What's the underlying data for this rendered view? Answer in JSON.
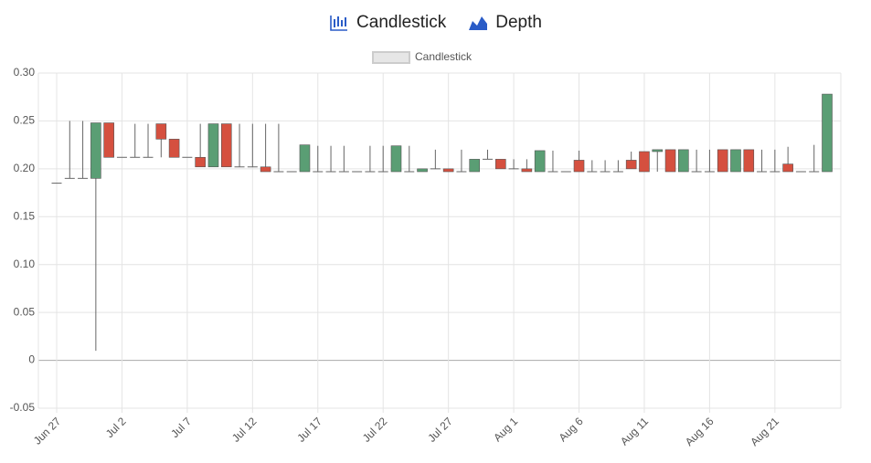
{
  "tabs": [
    "Candlestick",
    "Depth"
  ],
  "chart_data": {
    "type": "candlestick",
    "legend": "Candlestick",
    "up_color": "#5a9e74",
    "down_color": "#d5503f",
    "wick_color": "#666666",
    "grid": true,
    "categories": [
      "Jun 27",
      null,
      null,
      null,
      null,
      "Jul 2",
      null,
      null,
      null,
      null,
      "Jul 7",
      null,
      null,
      null,
      null,
      "Jul 12",
      null,
      null,
      null,
      null,
      "Jul 17",
      null,
      null,
      null,
      null,
      "Jul 22",
      null,
      null,
      null,
      null,
      "Jul 27",
      null,
      null,
      null,
      null,
      "Aug 1",
      null,
      null,
      null,
      null,
      "Aug 6",
      null,
      null,
      null,
      null,
      "Aug 11",
      null,
      null,
      null,
      null,
      "Aug 16",
      null,
      null,
      null,
      null,
      "Aug 21",
      null,
      null,
      null,
      null
    ],
    "ylim": [
      -0.05,
      0.3
    ],
    "yticks": [
      -0.05,
      0,
      0.05,
      {
        "value": 0.1,
        "label": "0.10"
      },
      0.15,
      {
        "value": 0.2,
        "label": "0.20"
      },
      0.25,
      {
        "value": 0.3,
        "label": "0.30"
      }
    ],
    "series": [
      {
        "name": "Candlestick",
        "open": [
          0.185,
          0.19,
          0.19,
          0.19,
          0.248,
          0.212,
          0.212,
          0.212,
          0.247,
          0.231,
          0.212,
          0.212,
          0.202,
          0.247,
          0.202,
          0.202,
          0.202,
          0.197,
          0.197,
          0.197,
          0.197,
          0.197,
          0.197,
          0.197,
          0.197,
          0.197,
          0.197,
          0.197,
          0.197,
          0.2,
          0.2,
          0.197,
          0.197,
          0.21,
          0.21,
          0.2,
          0.2,
          0.197,
          0.197,
          0.197,
          0.209,
          0.197,
          0.197,
          0.197,
          0.209,
          0.218,
          0.218,
          0.22,
          0.197,
          0.197,
          0.197,
          0.22,
          0.197,
          0.22,
          0.197,
          0.197,
          0.205,
          0.197,
          0.197,
          0.197
        ],
        "high": [
          0.185,
          0.25,
          0.25,
          0.248,
          0.248,
          0.212,
          0.247,
          0.247,
          0.247,
          0.231,
          0.212,
          0.247,
          0.247,
          0.247,
          0.247,
          0.247,
          0.247,
          0.247,
          0.197,
          0.225,
          0.224,
          0.224,
          0.224,
          0.197,
          0.224,
          0.224,
          0.224,
          0.224,
          0.2,
          0.22,
          0.2,
          0.22,
          0.21,
          0.22,
          0.21,
          0.21,
          0.21,
          0.219,
          0.219,
          0.197,
          0.219,
          0.209,
          0.209,
          0.209,
          0.218,
          0.218,
          0.22,
          0.22,
          0.22,
          0.22,
          0.22,
          0.22,
          0.22,
          0.22,
          0.22,
          0.22,
          0.223,
          0.197,
          0.225,
          0.278
        ],
        "low": [
          0.185,
          0.19,
          0.19,
          0.01,
          0.212,
          0.212,
          0.212,
          0.212,
          0.212,
          0.212,
          0.212,
          0.202,
          0.202,
          0.202,
          0.202,
          0.202,
          0.197,
          0.197,
          0.197,
          0.197,
          0.197,
          0.197,
          0.197,
          0.197,
          0.197,
          0.197,
          0.197,
          0.197,
          0.197,
          0.2,
          0.197,
          0.197,
          0.197,
          0.21,
          0.2,
          0.2,
          0.197,
          0.197,
          0.197,
          0.197,
          0.197,
          0.197,
          0.197,
          0.197,
          0.2,
          0.197,
          0.197,
          0.197,
          0.197,
          0.197,
          0.197,
          0.197,
          0.197,
          0.197,
          0.197,
          0.197,
          0.197,
          0.197,
          0.197,
          0.197
        ],
        "close": [
          0.185,
          0.19,
          0.19,
          0.248,
          0.212,
          0.212,
          0.212,
          0.212,
          0.231,
          0.212,
          0.212,
          0.202,
          0.247,
          0.202,
          0.202,
          0.202,
          0.197,
          0.197,
          0.197,
          0.225,
          0.197,
          0.197,
          0.197,
          0.197,
          0.197,
          0.197,
          0.224,
          0.197,
          0.2,
          0.2,
          0.197,
          0.197,
          0.21,
          0.21,
          0.2,
          0.2,
          0.197,
          0.219,
          0.197,
          0.197,
          0.197,
          0.197,
          0.197,
          0.197,
          0.2,
          0.197,
          0.22,
          0.197,
          0.22,
          0.197,
          0.197,
          0.197,
          0.22,
          0.197,
          0.197,
          0.197,
          0.197,
          0.197,
          0.197,
          0.278
        ]
      }
    ]
  }
}
